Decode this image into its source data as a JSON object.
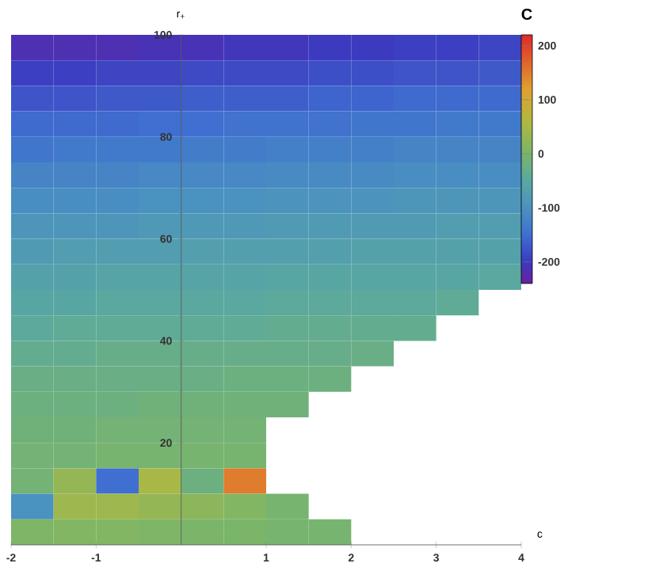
{
  "chart_data": {
    "type": "heatmap",
    "xlabel": "c",
    "ylabel": "r$_{+}$",
    "clabel": "C",
    "xlim": [
      -2,
      4
    ],
    "ylim": [
      0,
      100
    ],
    "xticks": [
      -2,
      -1,
      1,
      2,
      3,
      4
    ],
    "yticks": [
      20,
      40,
      60,
      80,
      100
    ],
    "clim": [
      -240,
      220
    ],
    "cticks": [
      -200,
      -100,
      0,
      100,
      200
    ],
    "cells": [
      [
        -215,
        -215,
        -215,
        -210,
        -210,
        -205,
        -205,
        -200,
        -200,
        -195,
        -195,
        -190
      ],
      [
        -195,
        -195,
        -190,
        -190,
        -185,
        -185,
        -185,
        -180,
        -180,
        -175,
        -175,
        -170
      ],
      [
        -175,
        -175,
        -170,
        -170,
        -165,
        -165,
        -165,
        -160,
        -160,
        -155,
        -155,
        -155
      ],
      [
        -155,
        -155,
        -155,
        -150,
        -150,
        -145,
        -145,
        -145,
        -140,
        -140,
        -135,
        -135
      ],
      [
        -140,
        -135,
        -135,
        -135,
        -130,
        -130,
        -125,
        -125,
        -125,
        -120,
        -120,
        -120
      ],
      [
        -120,
        -120,
        -120,
        -115,
        -115,
        -115,
        -110,
        -110,
        -110,
        -105,
        -105,
        -105
      ],
      [
        -105,
        -105,
        -105,
        -100,
        -100,
        -100,
        -95,
        -95,
        -95,
        -90,
        -90,
        -90
      ],
      [
        -90,
        -90,
        -90,
        -85,
        -85,
        -85,
        -80,
        -80,
        -80,
        -80,
        -75,
        -75
      ],
      [
        -80,
        -75,
        -75,
        -75,
        -70,
        -70,
        -70,
        -70,
        -65,
        -65,
        -65,
        -65
      ],
      [
        -65,
        -65,
        -60,
        -60,
        -60,
        -60,
        -55,
        -55,
        -55,
        -55,
        -55,
        -50
      ],
      [
        -55,
        -55,
        -50,
        -50,
        -50,
        -50,
        -45,
        -45,
        -45,
        -45,
        -40,
        null
      ],
      [
        -45,
        -40,
        -40,
        -40,
        -40,
        -40,
        -35,
        -35,
        -35,
        -35,
        null,
        null
      ],
      [
        -35,
        -35,
        -30,
        -30,
        -30,
        -30,
        -30,
        -30,
        -25,
        null,
        null,
        null
      ],
      [
        -25,
        -25,
        -25,
        -25,
        -25,
        -20,
        -20,
        -20,
        null,
        null,
        null,
        null
      ],
      [
        -20,
        -20,
        -20,
        -15,
        -15,
        -15,
        -15,
        null,
        null,
        null,
        null,
        null
      ],
      [
        -15,
        -15,
        -10,
        -10,
        -10,
        -10,
        null,
        null,
        null,
        null,
        null,
        null
      ],
      [
        -10,
        -10,
        -5,
        -5,
        -5,
        -5,
        null,
        null,
        null,
        null,
        null,
        null
      ],
      [
        -10,
        30,
        -150,
        50,
        -20,
        150,
        null,
        null,
        null,
        null,
        null,
        null
      ],
      [
        -100,
        40,
        40,
        30,
        20,
        10,
        -5,
        null,
        null,
        null,
        null,
        null
      ],
      [
        5,
        10,
        10,
        5,
        0,
        0,
        -5,
        -5,
        null,
        null,
        null,
        null
      ]
    ]
  }
}
